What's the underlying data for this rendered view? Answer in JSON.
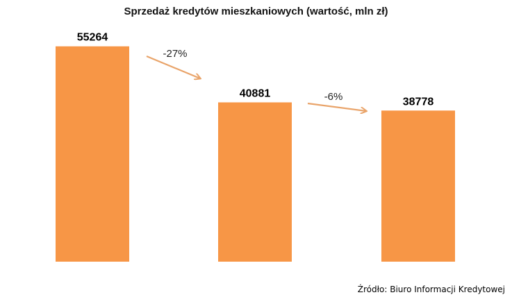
{
  "chart_data": {
    "type": "bar",
    "title": "Sprzedaż kredytów mieszkaniowych (wartość, mln zł)",
    "categories": [
      "",
      "",
      ""
    ],
    "values": [
      55264,
      40881,
      38778
    ],
    "data_labels": [
      "55264",
      "40881",
      "38778"
    ],
    "annotations": [
      {
        "from": 0,
        "to": 1,
        "label": "-27%"
      },
      {
        "from": 1,
        "to": 2,
        "label": "-6%"
      }
    ],
    "ylim": [
      0,
      57000
    ],
    "grid": false,
    "legend": "none",
    "xlabel": "",
    "ylabel": ""
  },
  "source": "Źródło: Biuro Informacji Kredytowej",
  "colors": {
    "bar": "#F79646",
    "arrow": "#E9A46A",
    "label": "#000000"
  }
}
